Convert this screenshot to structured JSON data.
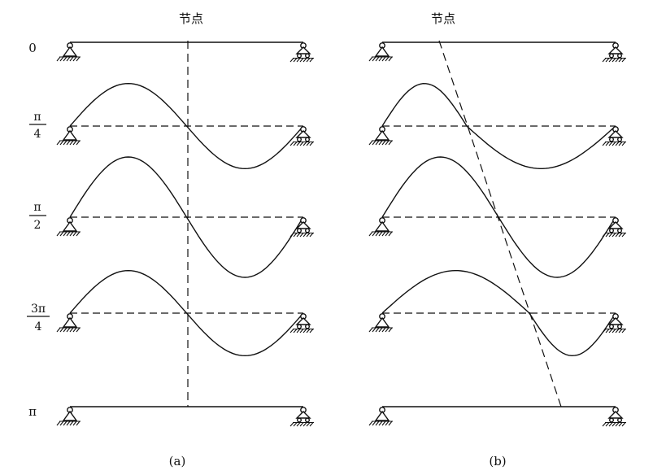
{
  "panels": [
    {
      "id": "a",
      "node_label": "节点",
      "caption": "(a)",
      "node_line": "vertical"
    },
    {
      "id": "b",
      "node_label": "节点",
      "caption": "(b)",
      "node_line": "oblique"
    }
  ],
  "phase_labels": {
    "zero": "0",
    "quarter": {
      "num": "π",
      "den": "4"
    },
    "half": {
      "num": "π",
      "den": "2"
    },
    "three_quarter": {
      "num": "3π",
      "den": "4"
    },
    "pi": "π"
  },
  "phases": [
    "0",
    "π/4",
    "π/2",
    "3π/4",
    "π"
  ],
  "relative_amplitudes": [
    0,
    0.7071,
    1,
    0.7071,
    0
  ],
  "supports": {
    "left": "pin",
    "right": "roller"
  },
  "colors": {
    "ink": "#111111",
    "background": "#ffffff"
  }
}
